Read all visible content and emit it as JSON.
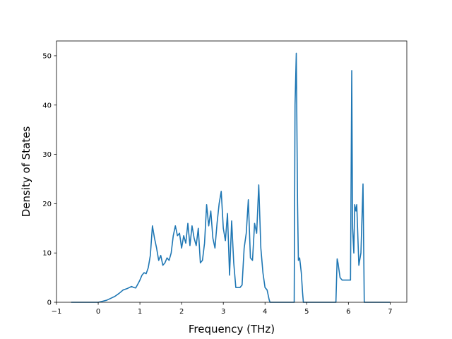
{
  "chart_data": {
    "type": "line",
    "title": "",
    "xlabel": "Frequency (THz)",
    "ylabel": "Density of States",
    "xlim": [
      -1,
      7.4
    ],
    "ylim": [
      0,
      53
    ],
    "xticks": [
      -1,
      0,
      1,
      2,
      3,
      4,
      5,
      6,
      7
    ],
    "yticks": [
      0,
      10,
      20,
      30,
      40,
      50
    ],
    "xtick_labels": [
      "−1",
      "0",
      "1",
      "2",
      "3",
      "4",
      "5",
      "6",
      "7"
    ],
    "ytick_labels": [
      "0",
      "10",
      "20",
      "30",
      "40",
      "50"
    ],
    "grid": false,
    "legend": "none",
    "series": [
      {
        "color": "#1f77b4",
        "x": [
          -0.65,
          0.0,
          0.1,
          0.2,
          0.3,
          0.4,
          0.5,
          0.6,
          0.7,
          0.8,
          0.85,
          0.9,
          0.97,
          1.0,
          1.05,
          1.1,
          1.15,
          1.2,
          1.25,
          1.3,
          1.35,
          1.4,
          1.45,
          1.5,
          1.55,
          1.6,
          1.65,
          1.7,
          1.75,
          1.8,
          1.85,
          1.9,
          1.95,
          2.0,
          2.05,
          2.1,
          2.15,
          2.2,
          2.25,
          2.3,
          2.35,
          2.4,
          2.45,
          2.5,
          2.55,
          2.6,
          2.65,
          2.7,
          2.75,
          2.8,
          2.85,
          2.9,
          2.95,
          3.0,
          3.05,
          3.1,
          3.15,
          3.2,
          3.25,
          3.3,
          3.35,
          3.4,
          3.45,
          3.5,
          3.55,
          3.6,
          3.65,
          3.7,
          3.75,
          3.8,
          3.85,
          3.9,
          3.95,
          4.0,
          4.05,
          4.1,
          4.12,
          4.15,
          4.2,
          4.3,
          4.4,
          4.5,
          4.6,
          4.7,
          4.72,
          4.75,
          4.78,
          4.8,
          4.83,
          4.87,
          4.9,
          4.92,
          5.0,
          5.2,
          5.4,
          5.6,
          5.7,
          5.73,
          5.75,
          5.8,
          5.85,
          5.9,
          5.95,
          6.0,
          6.05,
          6.08,
          6.1,
          6.13,
          6.15,
          6.18,
          6.2,
          6.25,
          6.3,
          6.35,
          6.38,
          6.4,
          6.5,
          6.8,
          7.0
        ],
        "y": [
          0,
          0,
          0.2,
          0.4,
          0.8,
          1.2,
          1.8,
          2.5,
          2.8,
          3.2,
          3.0,
          2.9,
          4.0,
          4.5,
          5.5,
          6.0,
          5.8,
          7.0,
          9.5,
          15.5,
          13.0,
          11.0,
          8.5,
          9.5,
          7.5,
          8.0,
          9.0,
          8.5,
          10.0,
          13.5,
          15.5,
          13.5,
          14.0,
          11.0,
          13.5,
          12.0,
          16.0,
          11.5,
          15.5,
          13.0,
          11.5,
          15.0,
          8.0,
          8.5,
          12.0,
          19.8,
          15.5,
          18.5,
          13.0,
          11.0,
          16.0,
          20.0,
          22.5,
          15.0,
          12.5,
          18.0,
          5.5,
          16.5,
          8.0,
          3.0,
          3.0,
          3.0,
          3.5,
          11.0,
          14.0,
          20.8,
          9.0,
          8.5,
          16.0,
          14.0,
          23.8,
          11.0,
          6.0,
          3.0,
          2.5,
          0.5,
          0,
          0,
          0,
          0,
          0,
          0,
          0,
          0,
          40.0,
          50.5,
          20.0,
          8.5,
          9.0,
          6.0,
          2.0,
          0,
          0,
          0,
          0,
          0,
          0,
          8.8,
          8.0,
          5.0,
          4.5,
          4.5,
          4.5,
          4.5,
          4.5,
          47.0,
          15.0,
          10.0,
          19.8,
          18.5,
          19.8,
          7.5,
          10.0,
          24.0,
          0,
          0,
          0,
          0,
          0
        ]
      }
    ]
  }
}
